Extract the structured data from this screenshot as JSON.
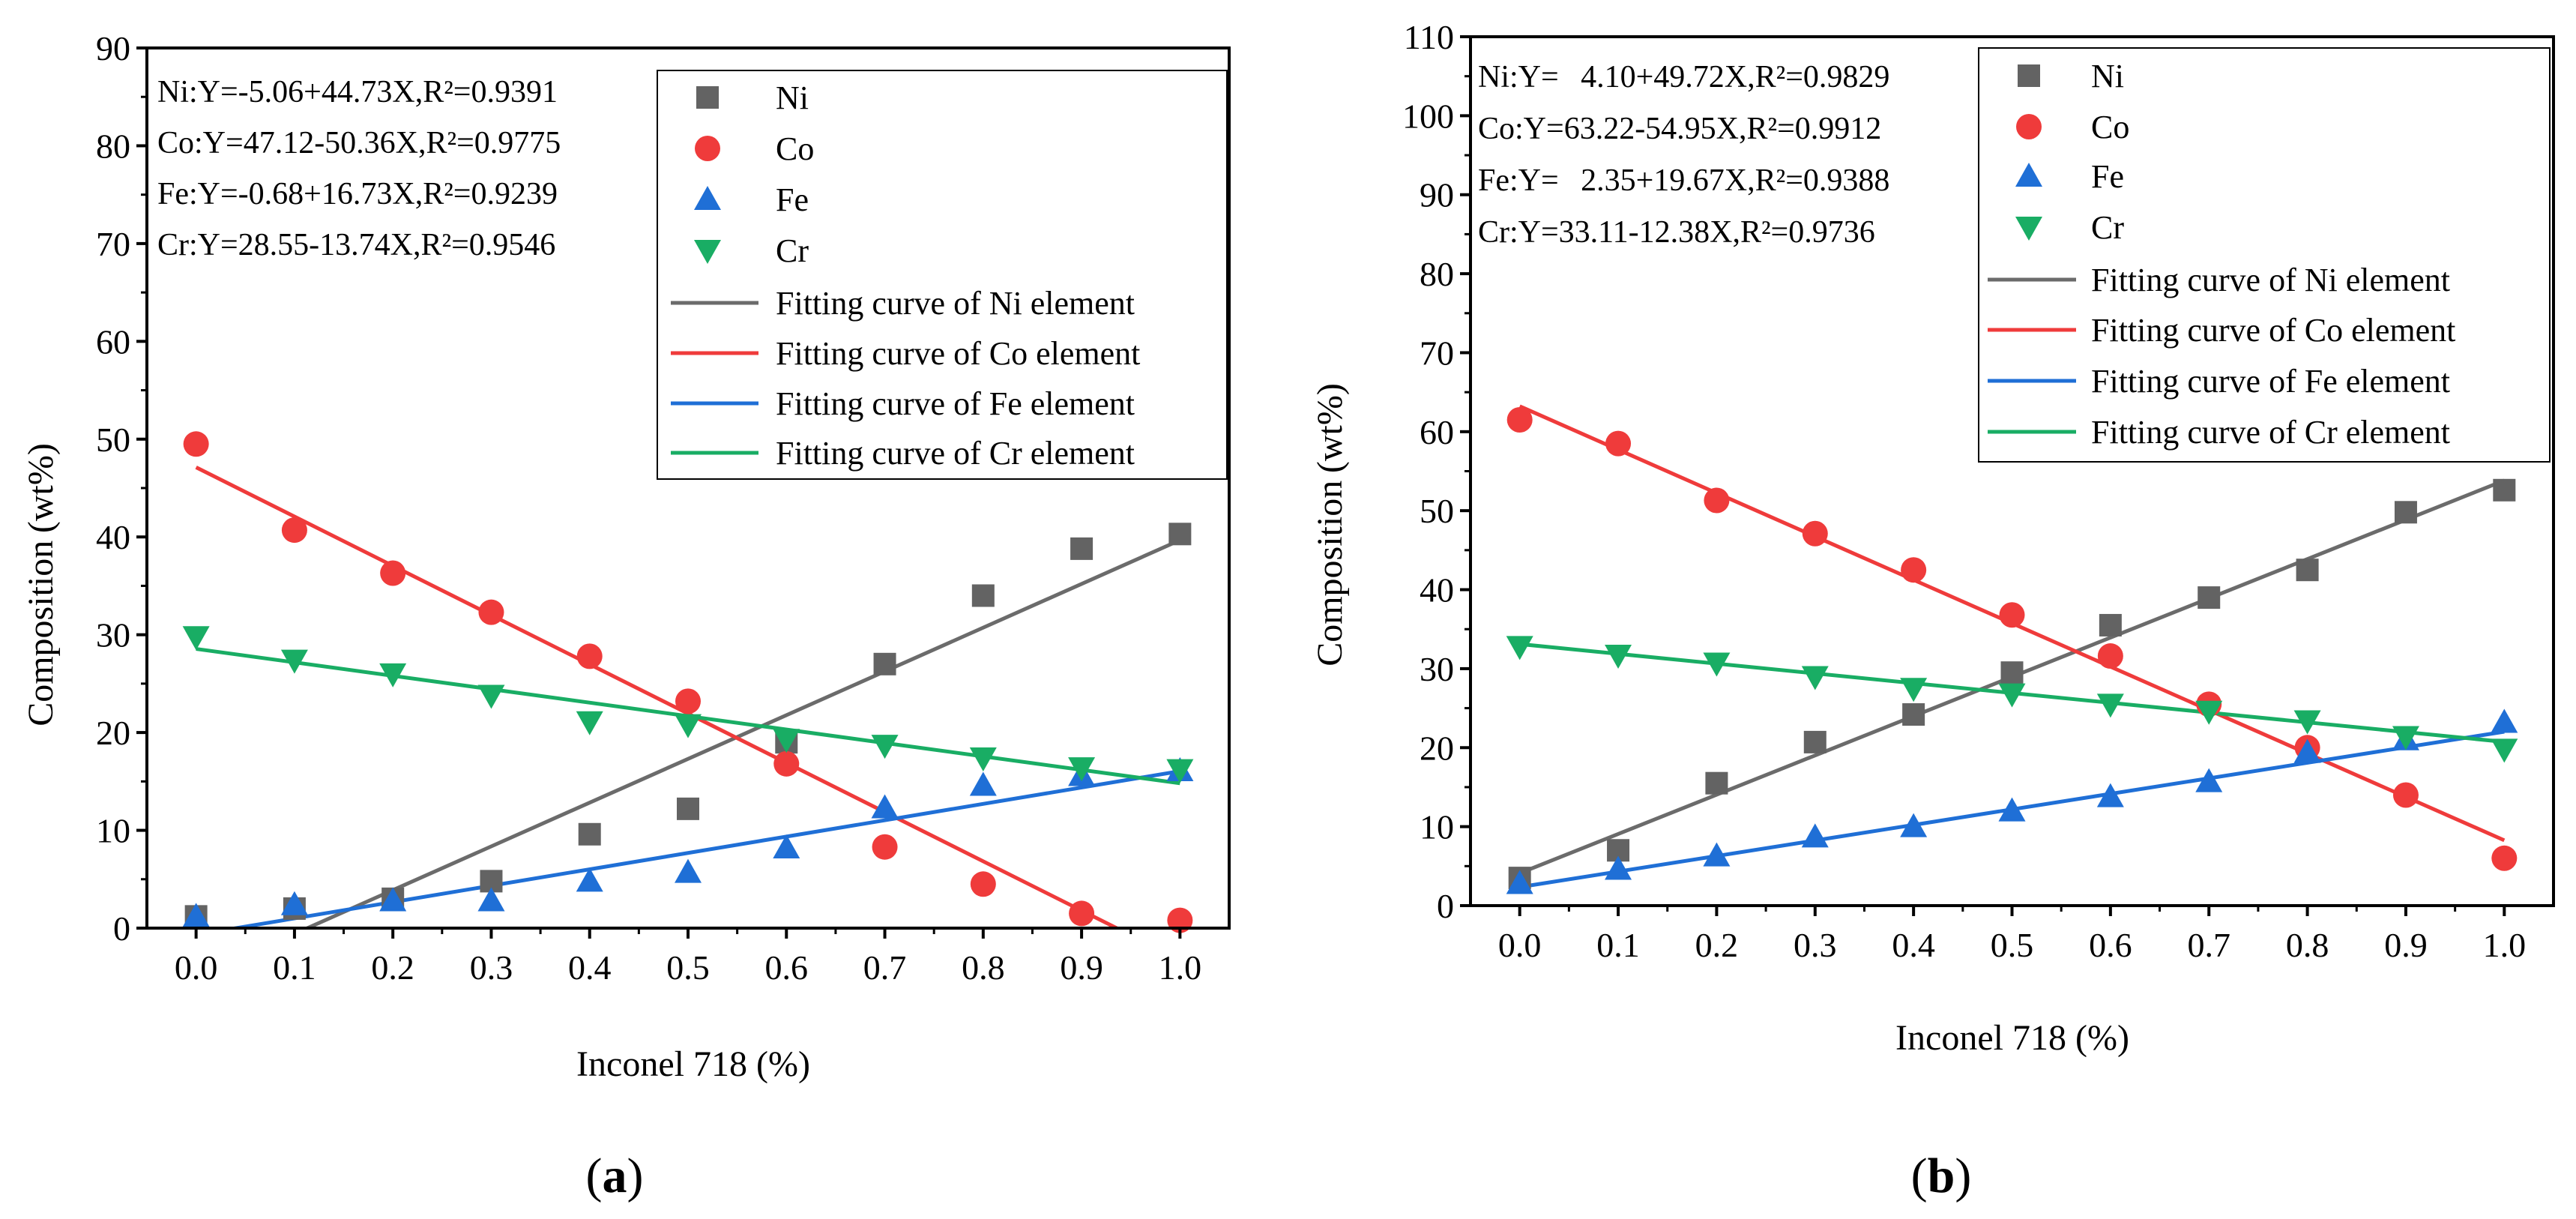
{
  "chart_data": [
    {
      "type": "scatter",
      "panel_label": "(a)",
      "panel_letter": "a",
      "xlabel": "Inconel 718 (%)",
      "ylabel": "Composition (wt%)",
      "xlim": [
        -0.05,
        1.05
      ],
      "ylim": [
        0,
        90
      ],
      "xticks": [
        "0.0",
        "0.1",
        "0.2",
        "0.3",
        "0.4",
        "0.5",
        "0.6",
        "0.7",
        "0.8",
        "0.9",
        "1.0"
      ],
      "yticks": [
        "0",
        "10",
        "20",
        "30",
        "40",
        "50",
        "60",
        "70",
        "80",
        "90"
      ],
      "x": [
        0.0,
        0.1,
        0.2,
        0.3,
        0.4,
        0.5,
        0.6,
        0.7,
        0.8,
        0.9,
        1.0
      ],
      "equations": [
        "Ni:Y=-5.06+44.73X,R²=0.9391",
        "Co:Y=47.12-50.36X,R²=0.9775",
        "Fe:Y=-0.68+16.73X,R²=0.9239",
        "Cr:Y=28.55-13.74X,R²=0.9546"
      ],
      "series": [
        {
          "name": "Ni",
          "marker": "square",
          "color": "#636363",
          "values": [
            1.2,
            2.0,
            3.0,
            4.8,
            9.6,
            12.2,
            19.0,
            27.0,
            34.0,
            38.8,
            40.3
          ]
        },
        {
          "name": "Co",
          "marker": "circle",
          "color": "#ef3b3b",
          "values": [
            49.5,
            40.7,
            36.3,
            32.3,
            27.8,
            23.2,
            16.8,
            8.3,
            4.5,
            1.5,
            0.8
          ]
        },
        {
          "name": "Fe",
          "marker": "triangle-up",
          "color": "#1f6fd6",
          "values": [
            1.2,
            2.4,
            2.8,
            2.8,
            4.8,
            5.7,
            8.2,
            12.3,
            14.6,
            15.6,
            16.1
          ]
        },
        {
          "name": "Cr",
          "marker": "triangle-down",
          "color": "#19ad64",
          "values": [
            29.8,
            27.4,
            26.0,
            23.8,
            21.1,
            20.8,
            19.3,
            18.7,
            17.4,
            16.4,
            16.2
          ]
        }
      ],
      "fits": [
        {
          "name": "Fitting curve of Ni element",
          "color": "#6b6b6b",
          "intercept": -5.06,
          "slope": 44.73
        },
        {
          "name": "Fitting curve of Co element",
          "color": "#ef3b3b",
          "intercept": 47.12,
          "slope": -50.36
        },
        {
          "name": "Fitting curve of Fe element",
          "color": "#1f6fd6",
          "intercept": -0.68,
          "slope": 16.73
        },
        {
          "name": "Fitting curve of Cr element",
          "color": "#19ad64",
          "intercept": 28.55,
          "slope": -13.74
        }
      ]
    },
    {
      "type": "scatter",
      "panel_label": "(b)",
      "panel_letter": "b",
      "xlabel": "Inconel 718 (%)",
      "ylabel": "Composition (wt%)",
      "xlim": [
        -0.05,
        1.05
      ],
      "ylim": [
        0,
        110
      ],
      "xticks": [
        "0.0",
        "0.1",
        "0.2",
        "0.3",
        "0.4",
        "0.5",
        "0.6",
        "0.7",
        "0.8",
        "0.9",
        "1.0"
      ],
      "yticks": [
        "0",
        "10",
        "20",
        "30",
        "40",
        "50",
        "60",
        "70",
        "80",
        "90",
        "100",
        "110"
      ],
      "x": [
        0.0,
        0.1,
        0.2,
        0.3,
        0.4,
        0.5,
        0.6,
        0.7,
        0.8,
        0.9,
        1.0
      ],
      "equations": [
        "Ni:Y=  4.10+49.72X,R²=0.9829",
        "Co:Y=63.22-54.95X,R²=0.9912",
        "Fe:Y=  2.35+19.67X,R²=0.9388",
        "Cr:Y=33.11-12.38X,R²=0.9736"
      ],
      "series": [
        {
          "name": "Ni",
          "marker": "square",
          "color": "#636363",
          "values": [
            3.5,
            7.0,
            15.5,
            20.7,
            24.2,
            29.5,
            35.5,
            39.0,
            42.5,
            49.8,
            52.6
          ]
        },
        {
          "name": "Co",
          "marker": "circle",
          "color": "#ef3b3b",
          "values": [
            61.5,
            58.5,
            51.3,
            47.1,
            42.5,
            36.8,
            31.6,
            25.5,
            20.0,
            14.0,
            6.0
          ]
        },
        {
          "name": "Fe",
          "marker": "triangle-up",
          "color": "#1f6fd6",
          "values": [
            2.8,
            4.6,
            6.3,
            8.7,
            10.0,
            12.0,
            13.8,
            15.7,
            19.4,
            21.0,
            23.2
          ]
        },
        {
          "name": "Cr",
          "marker": "triangle-down",
          "color": "#19ad64",
          "values": [
            32.8,
            31.7,
            30.7,
            29.0,
            27.5,
            26.8,
            25.5,
            24.6,
            23.4,
            21.4,
            19.8
          ]
        }
      ],
      "fits": [
        {
          "name": "Fitting curve of Ni element",
          "color": "#6b6b6b",
          "intercept": 4.1,
          "slope": 49.72
        },
        {
          "name": "Fitting curve of Co element",
          "color": "#ef3b3b",
          "intercept": 63.22,
          "slope": -54.95
        },
        {
          "name": "Fitting curve of Fe element",
          "color": "#1f6fd6",
          "intercept": 2.35,
          "slope": 19.67
        },
        {
          "name": "Fitting curve of Cr element",
          "color": "#19ad64",
          "intercept": 33.11,
          "slope": -12.38
        }
      ]
    }
  ]
}
